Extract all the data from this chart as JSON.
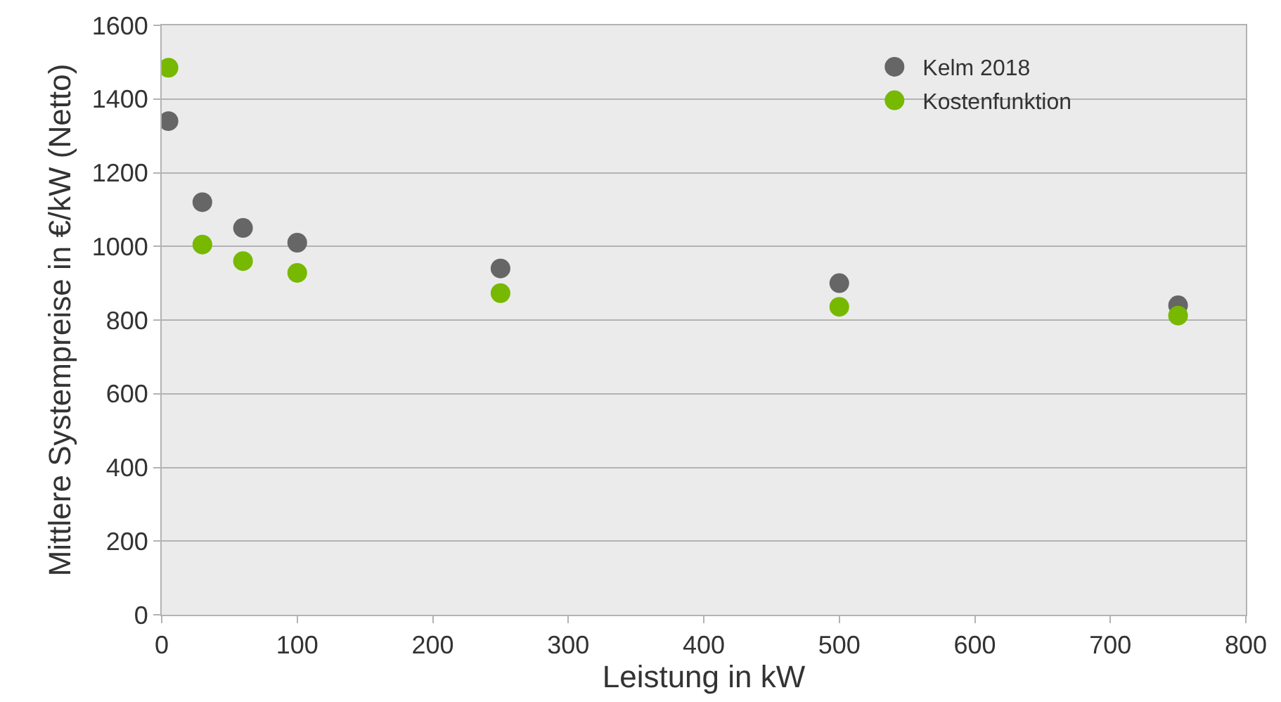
{
  "chart_data": {
    "type": "scatter",
    "xlabel": "Leistung in kW",
    "ylabel": "Mittlere Systempreise in €/kW (Netto)",
    "x": [
      5,
      30,
      60,
      100,
      250,
      500,
      750
    ],
    "series": [
      {
        "name": "Kelm 2018",
        "color": "#666666",
        "values": [
          1340,
          1120,
          1050,
          1010,
          940,
          900,
          840
        ]
      },
      {
        "name": "Kostenfunktion",
        "color": "#77b800",
        "values": [
          1485,
          1005,
          960,
          928,
          873,
          836,
          812
        ]
      }
    ],
    "xlim": [
      0,
      800
    ],
    "xticks": [
      0,
      100,
      200,
      300,
      400,
      500,
      600,
      700,
      800
    ],
    "ylim": [
      0,
      1600
    ],
    "yticks": [
      0,
      200,
      400,
      600,
      800,
      1000,
      1200,
      1400,
      1600
    ],
    "grid": "y",
    "legend": "top right",
    "marker": "circle"
  }
}
